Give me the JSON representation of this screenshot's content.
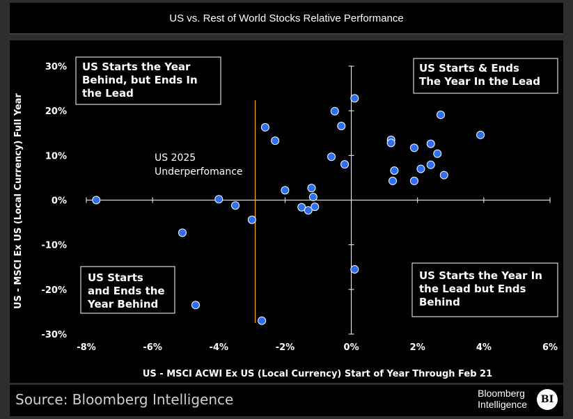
{
  "title": "US vs. Rest of World Stocks Relative Performance",
  "source": "Source: Bloomberg Intelligence",
  "brand": {
    "line1": "Bloomberg",
    "line2": "Intelligence",
    "badge": "BI"
  },
  "colors": {
    "point": "#2e6ff2",
    "vline": "#f5a623",
    "axis": "#ffffff",
    "background": "#000000"
  },
  "chart_data": {
    "type": "scatter",
    "title": "US vs. Rest of World Stocks Relative Performance",
    "xlabel": "US - MSCI ACWI Ex US (Local Currency) Start of Year Through Feb 21",
    "ylabel": "US - MSCI Ex US (Local Currency) Full Year",
    "xlim": [
      -8,
      6
    ],
    "ylim": [
      -30,
      30
    ],
    "x_ticks": [
      -8,
      -6,
      -4,
      -2,
      0,
      2,
      4,
      6
    ],
    "x_tick_labels": [
      "-8%",
      "-6%",
      "-4%",
      "-2%",
      "0%",
      "2%",
      "4%",
      "6%"
    ],
    "y_ticks": [
      30,
      20,
      10,
      0,
      -10,
      -20,
      -30
    ],
    "y_tick_labels": [
      "30%",
      "20%",
      "10%",
      "0%",
      "-10%",
      "-20%",
      "-30%"
    ],
    "grid": false,
    "vertical_marker": {
      "x": -2.9,
      "label_lines": [
        "US 2025",
        "Underperfomance"
      ]
    },
    "quadrant_labels": [
      {
        "lines": [
          "US Starts the Year",
          "Behind, but Ends In",
          "the Lead"
        ]
      },
      {
        "lines": [
          "US Starts & Ends",
          "The Year In the Lead"
        ]
      },
      {
        "lines": [
          "US Starts",
          "and Ends the",
          "Year Behind"
        ]
      },
      {
        "lines": [
          "US Starts the Year In",
          "the Lead but Ends",
          "Behind"
        ]
      }
    ],
    "points": [
      {
        "x": -7.7,
        "y": 0.0
      },
      {
        "x": -5.1,
        "y": -7.3
      },
      {
        "x": -4.7,
        "y": -23.5
      },
      {
        "x": -4.0,
        "y": 0.2
      },
      {
        "x": -3.5,
        "y": -1.2
      },
      {
        "x": -3.0,
        "y": -4.4
      },
      {
        "x": -2.7,
        "y": -27.0
      },
      {
        "x": -2.6,
        "y": 16.3
      },
      {
        "x": -2.3,
        "y": 13.3
      },
      {
        "x": -2.0,
        "y": 2.2
      },
      {
        "x": -1.5,
        "y": -1.6
      },
      {
        "x": -1.3,
        "y": -2.3
      },
      {
        "x": -1.2,
        "y": 2.7
      },
      {
        "x": -1.15,
        "y": 0.7
      },
      {
        "x": -1.1,
        "y": -1.5
      },
      {
        "x": -0.6,
        "y": 9.7
      },
      {
        "x": -0.5,
        "y": 19.9
      },
      {
        "x": -0.3,
        "y": 16.6
      },
      {
        "x": -0.2,
        "y": 8.0
      },
      {
        "x": 0.1,
        "y": 22.8
      },
      {
        "x": 0.1,
        "y": -15.5
      },
      {
        "x": 1.2,
        "y": 13.5
      },
      {
        "x": 1.2,
        "y": 12.8
      },
      {
        "x": 1.25,
        "y": 4.3
      },
      {
        "x": 1.3,
        "y": 6.6
      },
      {
        "x": 1.9,
        "y": 4.3
      },
      {
        "x": 1.9,
        "y": 11.7
      },
      {
        "x": 2.1,
        "y": 7.0
      },
      {
        "x": 2.4,
        "y": 12.6
      },
      {
        "x": 2.4,
        "y": 7.9
      },
      {
        "x": 2.6,
        "y": 10.4
      },
      {
        "x": 2.7,
        "y": 19.1
      },
      {
        "x": 2.8,
        "y": 5.6
      },
      {
        "x": 3.9,
        "y": 14.6
      }
    ]
  }
}
